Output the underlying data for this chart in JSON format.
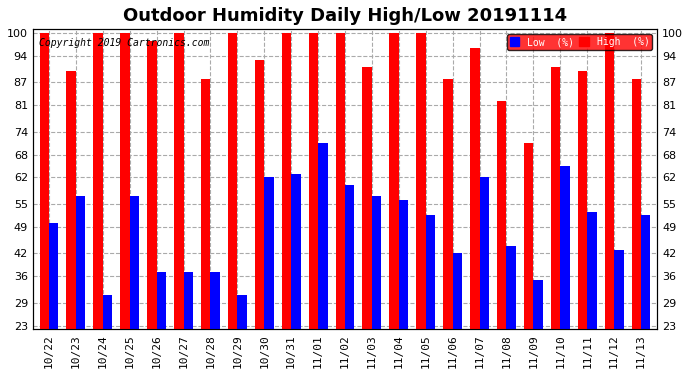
{
  "title": "Outdoor Humidity Daily High/Low 20191114",
  "copyright": "Copyright 2019 Cartronics.com",
  "legend_low": "Low  (%)",
  "legend_high": "High  (%)",
  "color_low": "#0000FF",
  "color_high": "#FF0000",
  "color_bg": "#FFFFFF",
  "x_labels": [
    "10/22",
    "10/23",
    "10/24",
    "10/25",
    "10/26",
    "10/27",
    "10/28",
    "10/29",
    "10/30",
    "10/31",
    "11/01",
    "11/02",
    "11/03",
    "11/04",
    "11/05",
    "11/06",
    "11/07",
    "11/08",
    "11/09",
    "11/10",
    "11/11",
    "11/12",
    "11/13"
  ],
  "high_vals": [
    100,
    90,
    100,
    100,
    98,
    100,
    88,
    100,
    93,
    100,
    100,
    100,
    91,
    100,
    100,
    88,
    96,
    82,
    71,
    91,
    90,
    100,
    88
  ],
  "low_vals": [
    50,
    57,
    31,
    57,
    37,
    37,
    37,
    31,
    62,
    63,
    71,
    60,
    57,
    56,
    52,
    42,
    62,
    44,
    35,
    65,
    53,
    43,
    52
  ],
  "ylim_min": 23,
  "ylim_max": 100,
  "yticks": [
    23,
    29,
    36,
    42,
    49,
    55,
    62,
    68,
    74,
    81,
    87,
    94,
    100
  ],
  "grid_color": "#AAAAAA",
  "title_fontsize": 13,
  "tick_fontsize": 8,
  "bar_width": 0.35
}
